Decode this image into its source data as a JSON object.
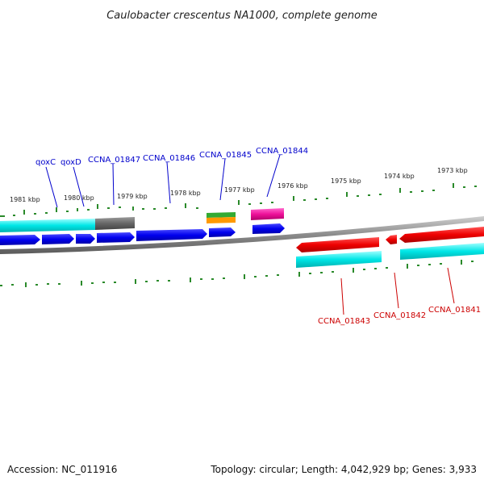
{
  "title": "Caulobacter crescentus NA1000, complete genome",
  "accession": "Accession: NC_011916",
  "summary": "Topology: circular; Length: 4,042,929 bp; Genes: 3,933",
  "scale_labels": [
    "1981 kbp",
    "1980 kbp",
    "1979 kbp",
    "1978 kbp",
    "1977 kbp",
    "1976 kbp",
    "1975 kbp",
    "1974 kbp",
    "1973 kbp"
  ],
  "forward_gene_labels": [
    "qoxC",
    "qoxD",
    "CCNA_01847",
    "CCNA_01846",
    "CCNA_01845",
    "CCNA_01844"
  ],
  "reverse_gene_labels": [
    "CCNA_01843",
    "CCNA_01842",
    "CCNA_01841"
  ],
  "colors": {
    "forward_label": "#0000cc",
    "reverse_label": "#cc0000",
    "forward_cds": "#0000ee",
    "reverse_cds": "#ee0000",
    "gene_feature": "#00e0e0",
    "backbone": "#888888",
    "ticks": "#2a8a2a",
    "gray_feature": "#606060",
    "green_feature": "#33aa33",
    "orange_feature": "#ff9900",
    "pink_feature": "#ee1199"
  }
}
